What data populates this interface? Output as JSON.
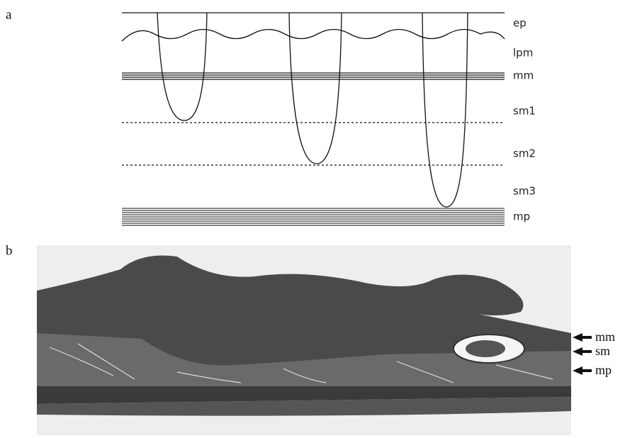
{
  "panels": [
    {
      "label": "a",
      "layers": [
        "ep",
        "lpm",
        "mm",
        "sm1",
        "sm2",
        "sm3",
        "mp"
      ]
    },
    {
      "label": "b",
      "arrows": [
        "mm",
        "sm",
        "mp"
      ]
    }
  ]
}
